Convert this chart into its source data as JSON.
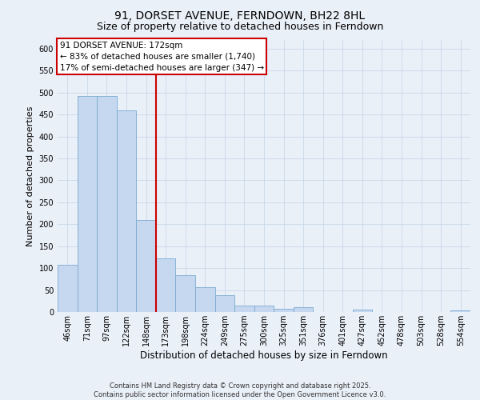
{
  "title": "91, DORSET AVENUE, FERNDOWN, BH22 8HL",
  "subtitle": "Size of property relative to detached houses in Ferndown",
  "xlabel": "Distribution of detached houses by size in Ferndown",
  "ylabel": "Number of detached properties",
  "categories": [
    "46sqm",
    "71sqm",
    "97sqm",
    "122sqm",
    "148sqm",
    "173sqm",
    "198sqm",
    "224sqm",
    "249sqm",
    "275sqm",
    "300sqm",
    "325sqm",
    "351sqm",
    "376sqm",
    "401sqm",
    "427sqm",
    "452sqm",
    "478sqm",
    "503sqm",
    "528sqm",
    "554sqm"
  ],
  "values": [
    107,
    493,
    493,
    460,
    210,
    123,
    83,
    57,
    38,
    14,
    15,
    8,
    11,
    0,
    0,
    5,
    0,
    0,
    0,
    0,
    4
  ],
  "bar_color": "#c5d8f0",
  "bar_edge_color": "#7aaad0",
  "grid_color": "#c8d8e8",
  "background_color": "#eaf0f8",
  "annotation_line1": "91 DORSET AVENUE: 172sqm",
  "annotation_line2": "← 83% of detached houses are smaller (1,740)",
  "annotation_line3": "17% of semi-detached houses are larger (347) →",
  "vline_index": 4.5,
  "annotation_box_color": "#ffffff",
  "annotation_box_edge": "#cc0000",
  "vline_color": "#cc0000",
  "footer": "Contains HM Land Registry data © Crown copyright and database right 2025.\nContains public sector information licensed under the Open Government Licence v3.0.",
  "ylim": [
    0,
    620
  ],
  "yticks": [
    0,
    50,
    100,
    150,
    200,
    250,
    300,
    350,
    400,
    450,
    500,
    550,
    600
  ],
  "title_fontsize": 10,
  "subtitle_fontsize": 9,
  "tick_fontsize": 7,
  "ylabel_fontsize": 8,
  "xlabel_fontsize": 8.5,
  "footer_fontsize": 6,
  "annotation_fontsize": 7.5
}
